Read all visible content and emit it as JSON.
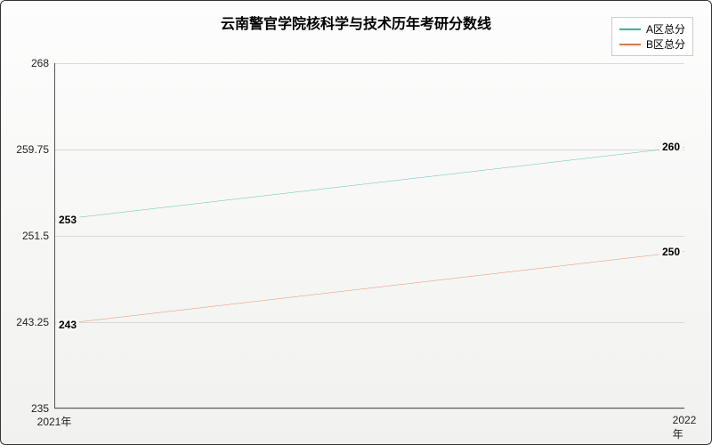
{
  "chart": {
    "type": "line",
    "title": "云南警官学院核科学与技术历年考研分数线",
    "title_fontsize": 16,
    "background_gradient": [
      "#fdfdfd",
      "#f1f1ef"
    ],
    "border_color": "#333333",
    "plot": {
      "x_categories": [
        "2021年",
        "2022年"
      ],
      "ylim": [
        235,
        268
      ],
      "yticks": [
        235,
        243.25,
        251.5,
        259.75,
        268
      ],
      "ytick_labels": [
        "235",
        "243.25",
        "251.5",
        "259.75",
        "268"
      ],
      "grid_color": "#d9d9d9",
      "axis_color": "#555555"
    },
    "series": [
      {
        "name": "A区总分",
        "color": "#2fb8a0",
        "values": [
          253,
          260
        ]
      },
      {
        "name": "B区总分",
        "color": "#e3754a",
        "values": [
          243,
          250
        ]
      }
    ],
    "legend": {
      "position": "top-right",
      "bg": "#ffffff",
      "border": "#cccccc",
      "fontsize": 12
    },
    "data_label_fontsize": 12
  }
}
